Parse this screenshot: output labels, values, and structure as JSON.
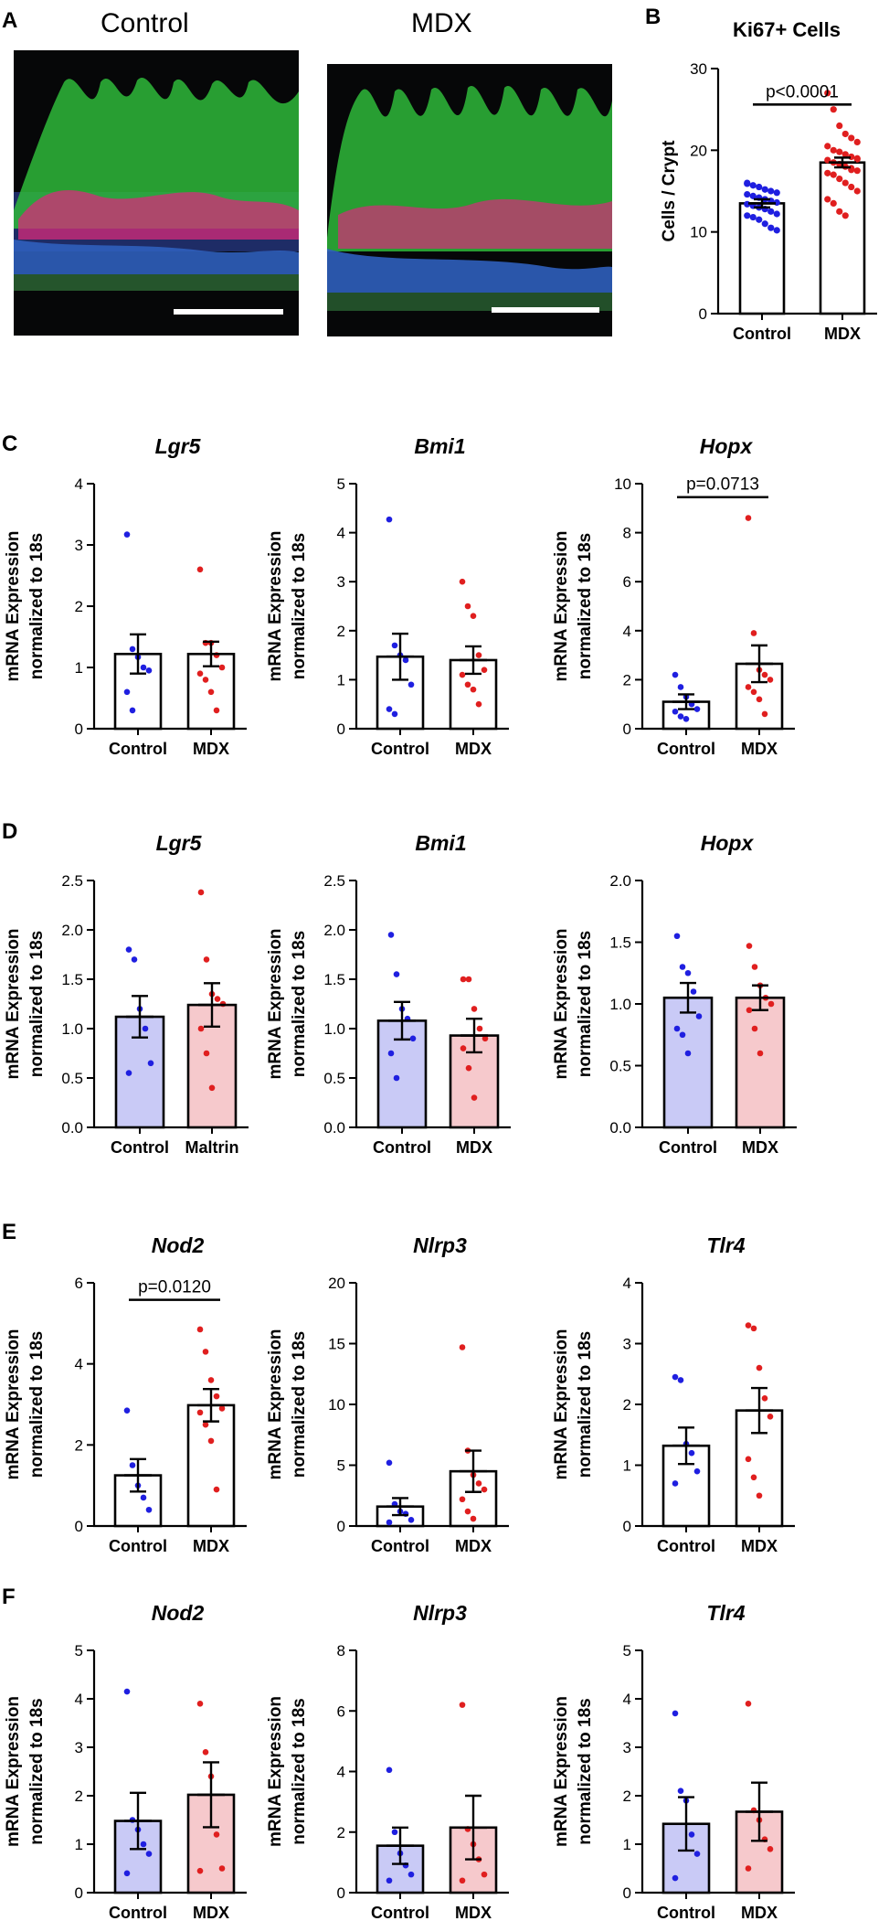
{
  "panels": {
    "A": {
      "letter": "A",
      "labels": [
        "Control",
        "MDX"
      ]
    },
    "B": {
      "letter": "B"
    },
    "C": {
      "letter": "C"
    },
    "D": {
      "letter": "D"
    },
    "E": {
      "letter": "E"
    },
    "F": {
      "letter": "F"
    }
  },
  "colors": {
    "control": "#1f1fe0",
    "mdx": "#e01f1f",
    "control_fill": "#c9caf6",
    "mdx_fill": "#f6c9cc"
  },
  "chart_data": [
    {
      "id": "B",
      "type": "bar",
      "title": "Ki67+ Cells",
      "title_italic": false,
      "ylabel": "Cells / Crypt",
      "categories": [
        "Control",
        "MDX"
      ],
      "ylim": [
        0,
        30
      ],
      "yticks": [
        0,
        10,
        20,
        30
      ],
      "means": [
        13.5,
        18.5
      ],
      "sem": [
        0.5,
        0.6
      ],
      "filled": false,
      "points": [
        [
          15.9,
          15.7,
          15.5,
          15.2,
          15,
          14.8,
          14.6,
          14.4,
          14.2,
          14,
          13.8,
          13.6,
          13.4,
          13.2,
          13,
          12.8,
          12.5,
          12.2,
          12,
          11.8,
          11.5,
          11,
          10.5,
          10.2,
          16
        ],
        [
          27,
          25,
          23,
          22,
          21.5,
          21,
          20.5,
          20,
          19.8,
          19.5,
          19.2,
          19,
          18.8,
          18.5,
          18.3,
          18,
          17.8,
          17.5,
          17.2,
          17,
          16.5,
          16,
          15.5,
          15,
          14,
          13.5,
          12.5,
          12,
          17.6,
          18.9
        ]
      ],
      "pvalue": "p<0.0001"
    },
    {
      "id": "C1",
      "type": "bar",
      "title": "Lgr5",
      "title_italic": true,
      "ylabel": [
        "mRNA Expression",
        "normalized to 18s"
      ],
      "categories": [
        "Control",
        "MDX"
      ],
      "ylim": [
        0,
        4
      ],
      "yticks": [
        0,
        1,
        2,
        3,
        4
      ],
      "means": [
        1.22,
        1.22
      ],
      "sem": [
        0.32,
        0.2
      ],
      "filled": false,
      "points": [
        [
          3.17,
          1.3,
          1.17,
          1.0,
          0.95,
          0.6,
          0.3
        ],
        [
          2.6,
          1.4,
          1.4,
          1.2,
          1.0,
          0.9,
          0.8,
          0.6,
          0.3
        ]
      ],
      "pvalue": null
    },
    {
      "id": "C2",
      "type": "bar",
      "title": "Bmi1",
      "title_italic": true,
      "ylabel": [
        "mRNA Expression",
        "normalized to 18s"
      ],
      "categories": [
        "Control",
        "MDX"
      ],
      "ylim": [
        0,
        5
      ],
      "yticks": [
        0,
        1,
        2,
        3,
        4,
        5
      ],
      "means": [
        1.47,
        1.4
      ],
      "sem": [
        0.47,
        0.28
      ],
      "filled": false,
      "points": [
        [
          4.27,
          1.7,
          1.5,
          1.4,
          0.9,
          0.4,
          0.3
        ],
        [
          3.0,
          2.5,
          2.3,
          1.5,
          1.2,
          1.1,
          0.9,
          0.8,
          0.5
        ]
      ],
      "pvalue": null
    },
    {
      "id": "C3",
      "type": "bar",
      "title": "Hopx",
      "title_italic": true,
      "ylabel": [
        "mRNA Expression",
        "normalized to 18s"
      ],
      "categories": [
        "Control",
        "MDX"
      ],
      "ylim": [
        0,
        10
      ],
      "yticks": [
        0,
        2,
        4,
        6,
        8,
        10
      ],
      "means": [
        1.1,
        2.65
      ],
      "sem": [
        0.3,
        0.75
      ],
      "filled": false,
      "points": [
        [
          2.2,
          1.7,
          1.3,
          1.0,
          0.8,
          0.7,
          0.5,
          0.4
        ],
        [
          8.6,
          3.9,
          2.4,
          2.2,
          2.0,
          1.7,
          1.5,
          1.2,
          0.6
        ]
      ],
      "pvalue": "p=0.0713"
    },
    {
      "id": "D1",
      "type": "bar",
      "title": "Lgr5",
      "title_italic": true,
      "ylabel": [
        "mRNA Expression",
        "normalized to 18s"
      ],
      "categories": [
        "Control",
        "Maltrin"
      ],
      "ylim": [
        0,
        2.5
      ],
      "yticks": [
        0.0,
        0.5,
        1.0,
        1.5,
        2.0,
        2.5
      ],
      "means": [
        1.12,
        1.24
      ],
      "sem": [
        0.21,
        0.22
      ],
      "filled": true,
      "points": [
        [
          1.8,
          1.7,
          1.2,
          1.0,
          0.65,
          0.55
        ],
        [
          2.38,
          1.7,
          1.35,
          1.3,
          1.25,
          1.0,
          0.75,
          0.4
        ]
      ],
      "pvalue": null
    },
    {
      "id": "D2",
      "type": "bar",
      "title": "Bmi1",
      "title_italic": true,
      "ylabel": [
        "mRNA Expression",
        "normalized to 18s"
      ],
      "categories": [
        "Control",
        "MDX"
      ],
      "ylim": [
        0,
        2.5
      ],
      "yticks": [
        0.0,
        0.5,
        1.0,
        1.5,
        2.0,
        2.5
      ],
      "means": [
        1.08,
        0.93
      ],
      "sem": [
        0.19,
        0.17
      ],
      "filled": true,
      "points": [
        [
          1.95,
          1.55,
          1.2,
          1.1,
          0.9,
          0.75,
          0.5
        ],
        [
          1.5,
          1.5,
          1.2,
          1.0,
          0.9,
          0.8,
          0.6,
          0.3
        ]
      ],
      "pvalue": null
    },
    {
      "id": "D3",
      "type": "bar",
      "title": "Hopx",
      "title_italic": true,
      "ylabel": [
        "mRNA Expression",
        "normalized to 18s"
      ],
      "categories": [
        "Control",
        "MDX"
      ],
      "ylim": [
        0,
        2.0
      ],
      "yticks": [
        0.0,
        0.5,
        1.0,
        1.5,
        2.0
      ],
      "means": [
        1.05,
        1.05
      ],
      "sem": [
        0.12,
        0.1
      ],
      "filled": true,
      "points": [
        [
          1.55,
          1.3,
          1.25,
          1.1,
          0.9,
          0.8,
          0.75,
          0.6
        ],
        [
          1.47,
          1.3,
          1.15,
          1.05,
          1.0,
          0.95,
          0.8,
          0.6
        ]
      ],
      "pvalue": null
    },
    {
      "id": "E1",
      "type": "bar",
      "title": "Nod2",
      "title_italic": true,
      "ylabel": [
        "mRNA Expression",
        "normalized to 18s"
      ],
      "categories": [
        "Control",
        "MDX"
      ],
      "ylim": [
        0,
        6
      ],
      "yticks": [
        0,
        2,
        4,
        6
      ],
      "means": [
        1.25,
        2.98
      ],
      "sem": [
        0.4,
        0.4
      ],
      "filled": false,
      "points": [
        [
          2.85,
          1.5,
          1.0,
          0.7,
          0.4
        ],
        [
          4.85,
          4.3,
          3.6,
          3.2,
          2.9,
          2.8,
          2.5,
          2.1,
          0.9
        ]
      ],
      "pvalue": "p=0.0120"
    },
    {
      "id": "E2",
      "type": "bar",
      "title": "Nlrp3",
      "title_italic": true,
      "ylabel": [
        "mRNA Expression",
        "normalized to 18s"
      ],
      "categories": [
        "Control",
        "MDX"
      ],
      "ylim": [
        0,
        20
      ],
      "yticks": [
        0,
        5,
        10,
        15,
        20
      ],
      "means": [
        1.6,
        4.5
      ],
      "sem": [
        0.7,
        1.7
      ],
      "filled": false,
      "points": [
        [
          5.2,
          1.8,
          1.2,
          1.0,
          0.5,
          0.3
        ],
        [
          14.7,
          6.2,
          4.2,
          3.5,
          3.0,
          2.2,
          1.2,
          0.6
        ]
      ],
      "pvalue": null
    },
    {
      "id": "E3",
      "type": "bar",
      "title": "Tlr4",
      "title_italic": true,
      "ylabel": [
        "mRNA Expression",
        "normalized to 18s"
      ],
      "categories": [
        "Control",
        "MDX"
      ],
      "ylim": [
        0,
        4
      ],
      "yticks": [
        0,
        1,
        2,
        3,
        4
      ],
      "means": [
        1.32,
        1.9
      ],
      "sem": [
        0.3,
        0.37
      ],
      "filled": false,
      "points": [
        [
          2.45,
          2.4,
          1.35,
          1.2,
          0.9,
          0.7
        ],
        [
          3.3,
          3.25,
          2.6,
          2.1,
          1.8,
          1.1,
          0.8,
          0.5
        ]
      ],
      "pvalue": null
    },
    {
      "id": "F1",
      "type": "bar",
      "title": "Nod2",
      "title_italic": true,
      "ylabel": [
        "mRNA Expression",
        "normalized to 18s"
      ],
      "categories": [
        "Control",
        "MDX"
      ],
      "ylim": [
        0,
        5
      ],
      "yticks": [
        0,
        1,
        2,
        3,
        4,
        5
      ],
      "means": [
        1.48,
        2.02
      ],
      "sem": [
        0.58,
        0.67
      ],
      "filled": true,
      "points": [
        [
          4.15,
          1.5,
          1.3,
          1.0,
          0.8,
          0.4
        ],
        [
          3.9,
          2.9,
          2.4,
          1.2,
          0.5,
          0.45
        ]
      ],
      "pvalue": null
    },
    {
      "id": "F2",
      "type": "bar",
      "title": "Nlrp3",
      "title_italic": true,
      "ylabel": [
        "mRNA Expression",
        "normalized to 18s"
      ],
      "categories": [
        "Control",
        "MDX"
      ],
      "ylim": [
        0,
        8
      ],
      "yticks": [
        0,
        2,
        4,
        6,
        8
      ],
      "means": [
        1.55,
        2.15
      ],
      "sem": [
        0.6,
        1.05
      ],
      "filled": true,
      "points": [
        [
          4.05,
          2.0,
          1.3,
          0.9,
          0.6,
          0.4
        ],
        [
          6.2,
          2.1,
          1.6,
          1.1,
          0.6,
          0.4
        ]
      ],
      "pvalue": null
    },
    {
      "id": "F3",
      "type": "bar",
      "title": "Tlr4",
      "title_italic": true,
      "ylabel": [
        "mRNA Expression",
        "normalized to 18s"
      ],
      "categories": [
        "Control",
        "MDX"
      ],
      "ylim": [
        0,
        5
      ],
      "yticks": [
        0,
        1,
        2,
        3,
        4,
        5
      ],
      "means": [
        1.42,
        1.67
      ],
      "sem": [
        0.55,
        0.6
      ],
      "filled": true,
      "points": [
        [
          3.7,
          2.1,
          1.9,
          1.2,
          0.8,
          0.3
        ],
        [
          3.9,
          1.7,
          1.5,
          1.1,
          0.9,
          0.5
        ]
      ],
      "pvalue": null
    }
  ]
}
